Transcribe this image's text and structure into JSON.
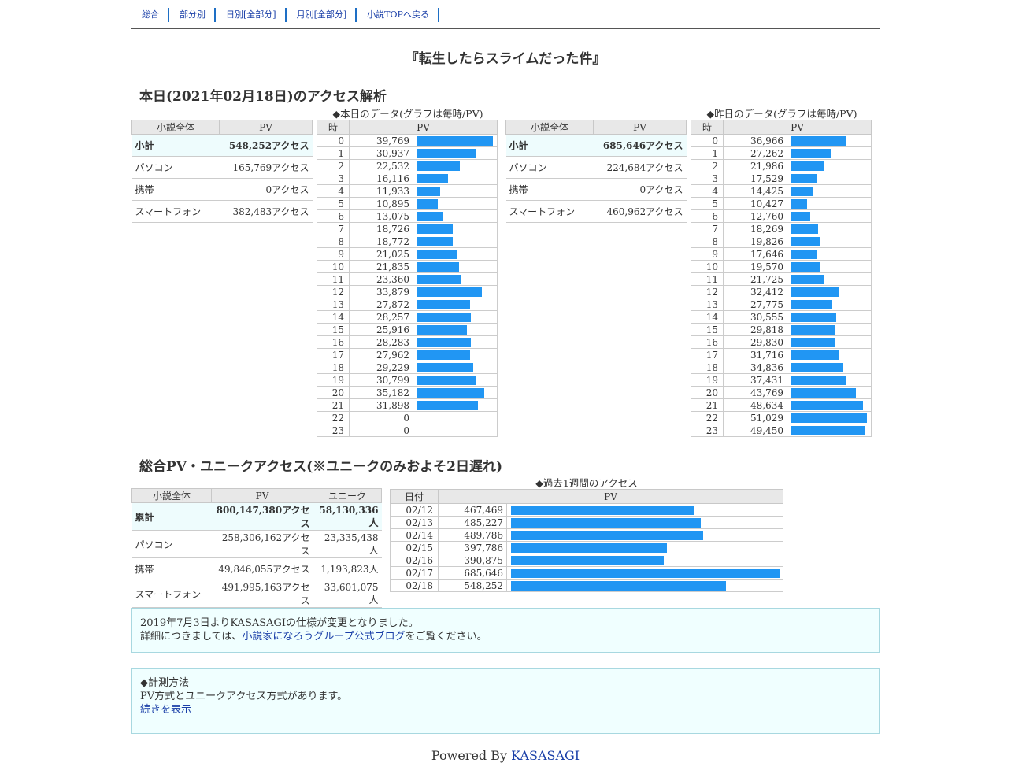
{
  "nav": [
    "総合",
    "部分別",
    "日別[全部分]",
    "月別[全部分]",
    "小説TOPへ戻る"
  ],
  "novel_title": "『転生したらスライムだった件』",
  "today": {
    "heading": "本日(2021年02月18日)のアクセス解析",
    "caption_today": "◆本日のデータ(グラフは毎時/PV)",
    "caption_yesterday": "◆昨日のデータ(グラフは毎時/PV)",
    "summary_headers": [
      "小説全体",
      "PV"
    ],
    "today_summary": [
      {
        "label": "小計",
        "value": "548,252アクセス"
      },
      {
        "label": "パソコン",
        "value": "165,769アクセス"
      },
      {
        "label": "携帯",
        "value": "0アクセス"
      },
      {
        "label": "スマートフォン",
        "value": "382,483アクセス"
      }
    ],
    "yesterday_summary": [
      {
        "label": "小計",
        "value": "685,646アクセス"
      },
      {
        "label": "パソコン",
        "value": "224,684アクセス"
      },
      {
        "label": "携帯",
        "value": "0アクセス"
      },
      {
        "label": "スマートフォン",
        "value": "460,962アクセス"
      }
    ],
    "hour_headers": [
      "時",
      "PV"
    ],
    "today_hours": [
      "39,769",
      "30,937",
      "22,532",
      "16,116",
      "11,933",
      "10,895",
      "13,075",
      "18,726",
      "18,772",
      "21,025",
      "21,835",
      "23,360",
      "33,879",
      "27,872",
      "28,257",
      "25,916",
      "28,283",
      "27,962",
      "29,229",
      "30,799",
      "35,182",
      "31,898",
      "0",
      "0"
    ],
    "yesterday_hours": [
      "36,966",
      "27,262",
      "21,986",
      "17,529",
      "14,425",
      "10,427",
      "12,760",
      "18,269",
      "19,826",
      "17,646",
      "19,570",
      "21,725",
      "32,412",
      "27,775",
      "30,555",
      "29,818",
      "29,830",
      "31,716",
      "34,836",
      "37,431",
      "43,769",
      "48,634",
      "51,029",
      "49,450"
    ]
  },
  "total": {
    "heading": "総合PV・ユニークアクセス(※ユニークのみおよそ2日遅れ)",
    "summary_headers": [
      "小説全体",
      "PV",
      "ユニーク"
    ],
    "summary": [
      {
        "label": "累計",
        "pv": "800,147,380アクセス",
        "unique": "58,130,336人"
      },
      {
        "label": "パソコン",
        "pv": "258,306,162アクセス",
        "unique": "23,335,438人"
      },
      {
        "label": "携帯",
        "pv": "49,846,055アクセス",
        "unique": "1,193,823人"
      },
      {
        "label": "スマートフォン",
        "pv": "491,995,163アクセス",
        "unique": "33,601,075人"
      }
    ],
    "week_caption": "◆過去1週間のアクセス",
    "week_headers": [
      "日付",
      "PV"
    ],
    "week": [
      {
        "date": "02/12",
        "pv": "467,469"
      },
      {
        "date": "02/13",
        "pv": "485,227"
      },
      {
        "date": "02/14",
        "pv": "489,786"
      },
      {
        "date": "02/15",
        "pv": "397,786"
      },
      {
        "date": "02/16",
        "pv": "390,875"
      },
      {
        "date": "02/17",
        "pv": "685,646"
      },
      {
        "date": "02/18",
        "pv": "548,252"
      }
    ]
  },
  "notice": {
    "line1": "2019年7月3日よりKASASAGIの仕様が変更となりました。",
    "line2_pre": "詳細につきましては、",
    "line2_link": "小説家になろうグループ公式ブログ",
    "line2_post": "をご覧ください。"
  },
  "method": {
    "title": "◆計測方法",
    "body": "PV方式とユニークアクセス方式があります。",
    "link": "続きを表示"
  },
  "footer": {
    "prefix": "Powered By ",
    "link": "KASASAGI"
  },
  "colors": {
    "bar": "#2196f3",
    "highlight_row": "#eefcfd",
    "link": "#1a3fa8",
    "nav_separator": "#1e6fc5"
  }
}
